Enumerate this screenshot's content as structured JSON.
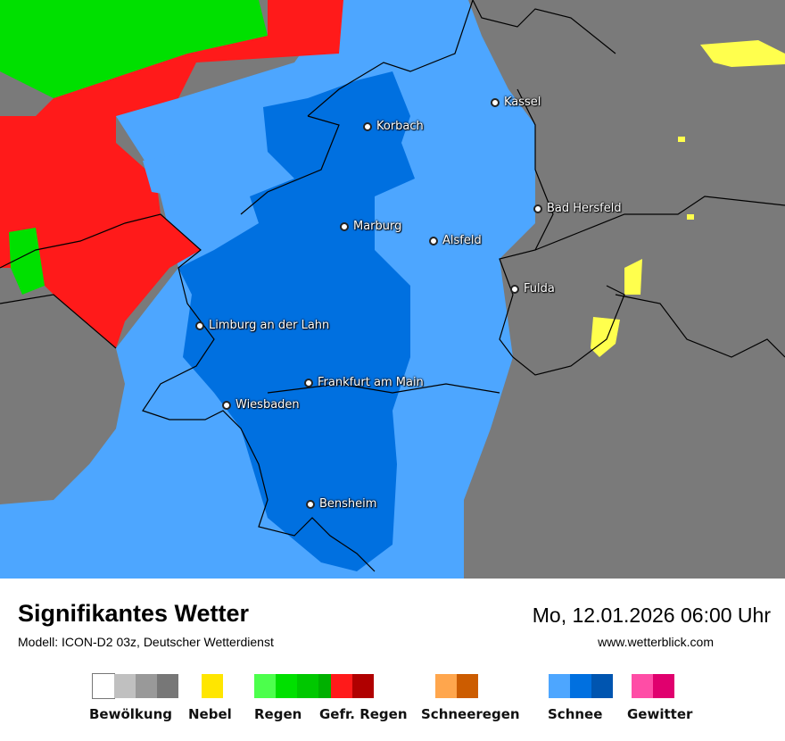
{
  "title": "Signifikantes Wetter",
  "model": "Modell: ICON-D2 03z, Deutscher Wetterdienst",
  "datetime": "Mo, 12.01.2026 06:00 Uhr",
  "site": "www.wetterblick.com",
  "cities": [
    {
      "name": "Kassel"
    },
    {
      "name": "Korbach"
    },
    {
      "name": "Bad Hersfeld"
    },
    {
      "name": "Marburg"
    },
    {
      "name": "Alsfeld"
    },
    {
      "name": "Fulda"
    },
    {
      "name": "Limburg an der Lahn"
    },
    {
      "name": "Frankfurt am Main"
    },
    {
      "name": "Wiesbaden"
    },
    {
      "name": "Bensheim"
    }
  ],
  "legend": [
    {
      "label": "Bewölkung",
      "colors": [
        "#ffffff",
        "#c0c0c0",
        "#999999",
        "#777777"
      ]
    },
    {
      "label": "Nebel",
      "colors": [
        "#ffe600"
      ]
    },
    {
      "label": "Regen",
      "colors": [
        "#4cff4c",
        "#00e000",
        "#00c800",
        "#00b000"
      ]
    },
    {
      "label": "Gefr. Regen",
      "colors": [
        "#ff1a1a",
        "#b00000"
      ]
    },
    {
      "label": "Schneeregen",
      "colors": [
        "#ffa64d",
        "#cc5c00"
      ]
    },
    {
      "label": "Schnee",
      "colors": [
        "#4da6ff",
        "#0070e0",
        "#0055b0"
      ]
    },
    {
      "label": "Gewitter",
      "colors": [
        "#ff4da6",
        "#e0006e"
      ]
    }
  ]
}
